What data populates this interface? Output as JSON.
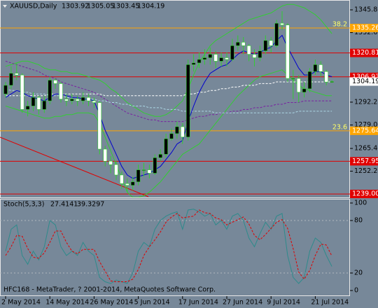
{
  "chart_data": [
    {
      "type": "candlestick",
      "title": "XAUUSD,Daily",
      "categories": [
        "2 May 2014",
        null,
        null,
        null,
        null,
        null,
        null,
        null,
        "14 May 2014",
        null,
        null,
        null,
        null,
        null,
        null,
        null,
        "26 May 2014",
        null,
        null,
        null,
        null,
        null,
        null,
        null,
        "5 Jun 2014",
        null,
        null,
        null,
        null,
        null,
        null,
        null,
        "17 Jun 2014",
        null,
        null,
        null,
        null,
        null,
        null,
        null,
        "27 Jun 2014",
        null,
        null,
        null,
        null,
        null,
        null,
        null,
        "9 Jul 2014",
        null,
        null,
        null,
        null,
        null,
        null,
        null,
        "21 Jul 2014",
        null,
        null,
        null
      ],
      "open": [
        1297,
        1302,
        1309,
        1308,
        1288,
        1290,
        1295,
        1288,
        1293,
        1305,
        1303,
        1294,
        1293,
        1294,
        1293,
        1295,
        1293,
        1292,
        1265,
        1258,
        1256,
        1250,
        1245,
        1244,
        1246,
        1253,
        1253,
        1251,
        1260,
        1262,
        1271,
        1274,
        1278,
        1272,
        1314,
        1315,
        1317,
        1318,
        1320,
        1316,
        1318,
        1317,
        1325,
        1327,
        1325,
        1320,
        1318,
        1322,
        1328,
        1325,
        1338,
        1337,
        1306,
        1306,
        1298,
        1300,
        1310,
        1314,
        1310,
        1303.92
      ],
      "high": [
        1304,
        1313,
        1315,
        1309,
        1293,
        1298,
        1296,
        1296,
        1307,
        1306,
        1304,
        1297,
        1297,
        1296,
        1298,
        1297,
        1295,
        1293,
        1267,
        1261,
        1258,
        1252,
        1248,
        1249,
        1256,
        1257,
        1256,
        1262,
        1265,
        1274,
        1277,
        1281,
        1280,
        1317,
        1320,
        1321,
        1323,
        1324,
        1322,
        1321,
        1321,
        1329,
        1331,
        1330,
        1326,
        1323,
        1325,
        1331,
        1330,
        1340,
        1345,
        1338,
        1311,
        1308,
        1304,
        1312,
        1317,
        1316,
        1311,
        1305.05
      ],
      "low": [
        1295,
        1300,
        1305,
        1286,
        1284,
        1287,
        1285,
        1286,
        1291,
        1300,
        1292,
        1290,
        1291,
        1290,
        1291,
        1290,
        1289,
        1262,
        1255,
        1251,
        1247,
        1242,
        1240,
        1241,
        1244,
        1249,
        1248,
        1250,
        1258,
        1260,
        1270,
        1271,
        1268,
        1270,
        1310,
        1312,
        1314,
        1314,
        1312,
        1313,
        1313,
        1316,
        1322,
        1320,
        1316,
        1313,
        1316,
        1320,
        1321,
        1324,
        1334,
        1304,
        1294,
        1292,
        1295,
        1298,
        1308,
        1307,
        1302,
        1303.45
      ],
      "close": [
        1302,
        1309,
        1308,
        1288,
        1290,
        1295,
        1288,
        1293,
        1305,
        1303,
        1294,
        1293,
        1294,
        1293,
        1295,
        1293,
        1292,
        1265,
        1258,
        1256,
        1250,
        1245,
        1244,
        1246,
        1253,
        1253,
        1251,
        1260,
        1262,
        1271,
        1274,
        1278,
        1272,
        1314,
        1315,
        1317,
        1318,
        1320,
        1316,
        1318,
        1317,
        1325,
        1327,
        1325,
        1320,
        1318,
        1322,
        1328,
        1325,
        1338,
        1337,
        1306,
        1306,
        1298,
        1300,
        1310,
        1314,
        1310,
        1303.92,
        1304.19
      ],
      "up_color": "#000000",
      "down_color": "#ffffff",
      "wick_color": "#32cd32",
      "ylim": [
        1237,
        1351.5
      ],
      "yticks": [
        {
          "value": 1345.8,
          "label": "1345.80"
        },
        {
          "value": 1332.6,
          "label": "1332.60"
        },
        1292.25,
        {
          "value": 1279,
          "label": "1279.00"
        },
        {
          "value": 1265.4,
          "label": "1265.40"
        },
        {
          "value": 1252.2,
          "label": "1252.20"
        }
      ],
      "levels": [
        {
          "value": 1335.26,
          "color": "#ffa500",
          "fib": 38.2
        },
        {
          "value": 1320.81,
          "color": "#e00000"
        },
        {
          "value": 1306.93,
          "color": "#e00000"
        },
        {
          "value": 1275.64,
          "color": "#ffa500",
          "fib": 23.6
        },
        {
          "value": 1257.95,
          "color": "#e00000"
        },
        {
          "value": 1239,
          "label": "1239.00",
          "color": "#e00000"
        }
      ],
      "series": [
        {
          "color": "#32cd32",
          "style": "solid",
          "values": [
            1313,
            1314,
            1315,
            1316,
            1316,
            1315,
            1314,
            1312,
            1311,
            1311,
            1310,
            1310,
            1309,
            1309,
            1308,
            1307,
            1306,
            1305,
            1303,
            1300,
            1298,
            1295,
            1292,
            1290,
            1288,
            1286,
            1285,
            1284,
            1284,
            1285,
            1287,
            1290,
            1293,
            1300,
            1308,
            1315,
            1320,
            1325,
            1328,
            1330,
            1332,
            1334,
            1336,
            1338,
            1340,
            1341,
            1342,
            1343,
            1344,
            1346,
            1348,
            1349,
            1349,
            1348,
            1347,
            1345,
            1343,
            1340,
            1336,
            1332
          ]
        },
        {
          "color": "#32cd32",
          "style": "solid",
          "values": [
            1290,
            1289,
            1288,
            1287,
            1286,
            1285,
            1284,
            1283,
            1283,
            1284,
            1284,
            1285,
            1285,
            1286,
            1286,
            1286,
            1285,
            1280,
            1272,
            1264,
            1256,
            1248,
            1240,
            1237,
            1237,
            1238,
            1240,
            1243,
            1246,
            1250,
            1254,
            1258,
            1262,
            1264,
            1266,
            1268,
            1272,
            1276,
            1280,
            1284,
            1288,
            1292,
            1296,
            1299,
            1302,
            1305,
            1307,
            1308,
            1309,
            1310,
            1311,
            1308,
            1305,
            1302,
            1300,
            1299,
            1298,
            1297,
            1296,
            1296
          ]
        },
        {
          "color": "#7a1fa2",
          "style": "dashed",
          "values": [
            1316,
            1315,
            1314,
            1313,
            1312,
            1311,
            1310,
            1308,
            1307,
            1306,
            1304,
            1303,
            1302,
            1301,
            1300,
            1299,
            1298,
            1296,
            1294,
            1292,
            1290,
            1288,
            1286,
            1285,
            1284,
            1283,
            1282,
            1282,
            1281,
            1281,
            1281,
            1281,
            1281,
            1282,
            1283,
            1284,
            1284,
            1285,
            1285,
            1286,
            1286,
            1287,
            1287,
            1288,
            1288,
            1289,
            1289,
            1290,
            1290,
            1291,
            1291,
            1292,
            1292,
            1292,
            1293,
            1293,
            1293,
            1293,
            1293,
            1293
          ]
        },
        {
          "color": "#ffffff",
          "style": "dashed",
          "values": [
            1296,
            1296,
            1296,
            1296,
            1296,
            1296,
            1296,
            1296,
            1297,
            1297,
            1297,
            1297,
            1297,
            1297,
            1297,
            1297,
            1297,
            1297,
            1296,
            1296,
            1296,
            1296,
            1296,
            1296,
            1296,
            1296,
            1296,
            1296,
            1296,
            1296,
            1296,
            1296,
            1296,
            1297,
            1297,
            1298,
            1298,
            1299,
            1299,
            1300,
            1300,
            1301,
            1301,
            1302,
            1302,
            1302,
            1303,
            1303,
            1303,
            1304,
            1304,
            1304,
            1304,
            1304,
            1304,
            1304,
            1304,
            1304,
            1304,
            1304
          ]
        },
        {
          "color": "#add8e6",
          "style": "dashed",
          "values": [
            1300,
            1299,
            1299,
            1298,
            1298,
            1297,
            1297,
            1297,
            1296,
            1296,
            1296,
            1295,
            1295,
            1295,
            1294,
            1294,
            1294,
            1293,
            1293,
            1292,
            1292,
            1291,
            1291,
            1290,
            1290,
            1290,
            1289,
            1289,
            1289,
            1288,
            1288,
            1288,
            1287,
            1287,
            1287,
            1287,
            1287,
            1287,
            1286,
            1286,
            1286,
            1286,
            1286,
            1286,
            1286,
            1286,
            1286,
            1286,
            1286,
            1286,
            1286,
            1286,
            1286,
            1287,
            1287,
            1287,
            1287,
            1287,
            1287,
            1287
          ]
        },
        {
          "color": "#0000cd",
          "style": "solid",
          "values": [
            1295,
            1297,
            1299,
            1298,
            1296,
            1295,
            1294,
            1293,
            1295,
            1297,
            1297,
            1296,
            1295,
            1295,
            1294,
            1294,
            1293,
            1285,
            1276,
            1269,
            1262,
            1255,
            1250,
            1248,
            1249,
            1250,
            1251,
            1253,
            1255,
            1259,
            1263,
            1268,
            1270,
            1281,
            1290,
            1298,
            1304,
            1309,
            1311,
            1313,
            1314,
            1317,
            1320,
            1322,
            1321,
            1320,
            1321,
            1323,
            1324,
            1328,
            1331,
            1324,
            1318,
            1312,
            1308,
            1308,
            1310,
            1310,
            1308,
            1307
          ]
        }
      ]
    },
    {
      "type": "line",
      "title": "Stoch(5,3,3)",
      "footer": "HFC168 - MetaTrader, ? 2001-2014, MetaQuotes Software Corp.",
      "ylim": [
        -5.6,
        104.8
      ],
      "yticks": [
        100,
        80,
        20,
        0
      ],
      "levels": [
        80,
        20
      ],
      "level_color": "#b0b8c0",
      "series": [
        {
          "color": "#2e8b8b",
          "style": "solid",
          "values": [
            45,
            70,
            75,
            40,
            30,
            45,
            35,
            50,
            80,
            75,
            50,
            40,
            45,
            40,
            55,
            45,
            40,
            15,
            10,
            8,
            12,
            10,
            8,
            20,
            45,
            55,
            50,
            70,
            80,
            85,
            88,
            90,
            70,
            92,
            93,
            90,
            85,
            88,
            75,
            80,
            70,
            85,
            88,
            80,
            60,
            50,
            65,
            78,
            70,
            85,
            88,
            40,
            15,
            8,
            15,
            45,
            60,
            55,
            40,
            27.4141
          ]
        },
        {
          "color": "#e00000",
          "style": "dashed",
          "values": [
            40,
            50,
            63,
            62,
            48,
            38,
            37,
            43,
            55,
            68,
            68,
            55,
            45,
            42,
            47,
            47,
            47,
            33,
            22,
            11,
            10,
            10,
            10,
            13,
            24,
            40,
            50,
            58,
            67,
            78,
            84,
            88,
            83,
            84,
            85,
            92,
            89,
            88,
            83,
            81,
            75,
            78,
            81,
            84,
            76,
            63,
            58,
            64,
            71,
            78,
            81,
            71,
            48,
            21,
            13,
            23,
            40,
            53,
            52,
            39.3297
          ]
        }
      ]
    }
  ]
}
